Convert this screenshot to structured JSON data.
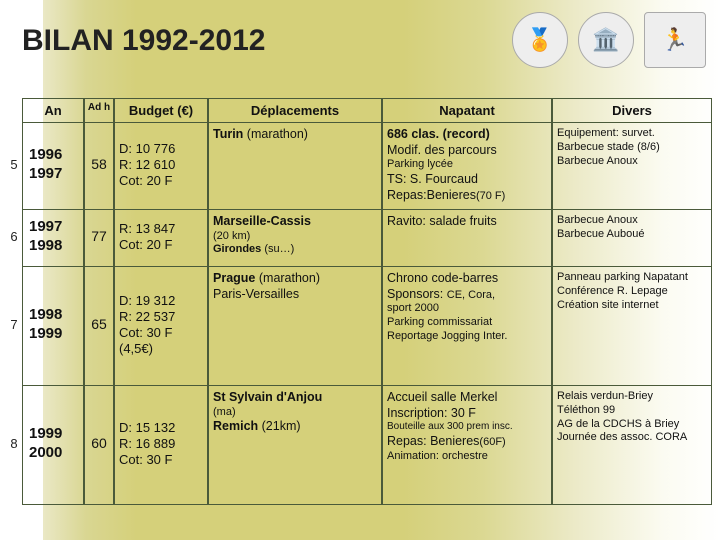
{
  "title": "BILAN 1992-2012",
  "headers": {
    "an": "An",
    "adh": "Ad h",
    "budget": "Budget (€)",
    "deplacements": "Déplacements",
    "napatant": "Napatant",
    "divers": "Divers"
  },
  "rows": [
    {
      "idx": "5",
      "an": [
        "1996",
        "1997"
      ],
      "adh": "58",
      "budget": [
        "D: 10 776",
        "R: 12 610",
        "Cot: 20 F"
      ],
      "dep_bold": "Turin",
      "dep_rest": " (marathon)",
      "nap": [
        {
          "b": "686 clas. (record)"
        },
        {
          "t": "Modif. des parcours"
        },
        {
          "s": "Parking lycée"
        },
        {
          "t": "TS: S. Fourcaud"
        },
        {
          "t": "Repas:Benieres",
          "tail_s": "(70 F)"
        }
      ],
      "div": [
        {
          "s": "Equipement: survet."
        },
        {
          "s": "Barbecue stade (8/6)"
        },
        {
          "s": "Barbecue Anoux"
        }
      ],
      "h": "h-5"
    },
    {
      "idx": "6",
      "an": [
        "1997",
        "1998"
      ],
      "adh": "77",
      "budget": [
        "R: 13 847",
        "Cot: 20 F"
      ],
      "dep_lines": [
        {
          "b": "Marseille-Cassis"
        },
        {
          "s": "(20 km)"
        },
        {
          "s_b": "Girondes",
          "s_rest": " (su…)"
        }
      ],
      "nap": [
        {
          "t": "Ravito: salade fruits"
        }
      ],
      "div": [
        {
          "s": "Barbecue Anoux"
        },
        {
          "s": "Barbecue Auboué"
        }
      ],
      "h": "h-6"
    },
    {
      "idx": "7",
      "an": [
        "1998",
        "1999"
      ],
      "adh": "65",
      "budget": [
        "D: 19 312",
        "R: 22 537",
        "Cot: 30 F",
        "  (4,5€)"
      ],
      "dep_lines": [
        {
          "b": "Prague",
          "rest": " (marathon)"
        },
        {
          "t": "Paris-Versailles"
        }
      ],
      "nap": [
        {
          "t": "Chrono code-barres"
        },
        {
          "t": "Sponsors: ",
          "s_rest": "CE, Cora,"
        },
        {
          "s": "sport 2000"
        },
        {
          "s": "Parking commissariat"
        },
        {
          "s": "Reportage Jogging Inter."
        }
      ],
      "div": [
        {
          "s": "Panneau parking Napatant"
        },
        {
          "s": "Conférence R. Lepage"
        },
        {
          "s": "Création site internet"
        }
      ],
      "h": "h-7"
    },
    {
      "idx": "8",
      "an": [
        "1999",
        "2000"
      ],
      "adh": "60",
      "budget": [
        "D: 15 132",
        "R: 16 889",
        "Cot: 30 F"
      ],
      "dep_lines": [
        {
          "b": "St Sylvain d'Anjou"
        },
        {
          "s": "(ma)"
        },
        {
          "b": "Remich",
          "rest": " (21km)"
        }
      ],
      "nap": [
        {
          "t": "Accueil salle Merkel"
        },
        {
          "t": "Inscription: 30 F"
        },
        {
          "vs": "Bouteille aux 300 prem insc."
        },
        {
          "t": "Repas: Benieres",
          "tail_s": "(60F)"
        },
        {
          "s": "Animation: orchestre"
        }
      ],
      "div": [
        {
          "s": "Relais verdun-Briey"
        },
        {
          "s": "Téléthon 99"
        },
        {
          "s": "AG de la CDCHS à Briey"
        },
        {
          "s": "Journée des assoc. CORA"
        }
      ],
      "h": "h-8"
    }
  ]
}
